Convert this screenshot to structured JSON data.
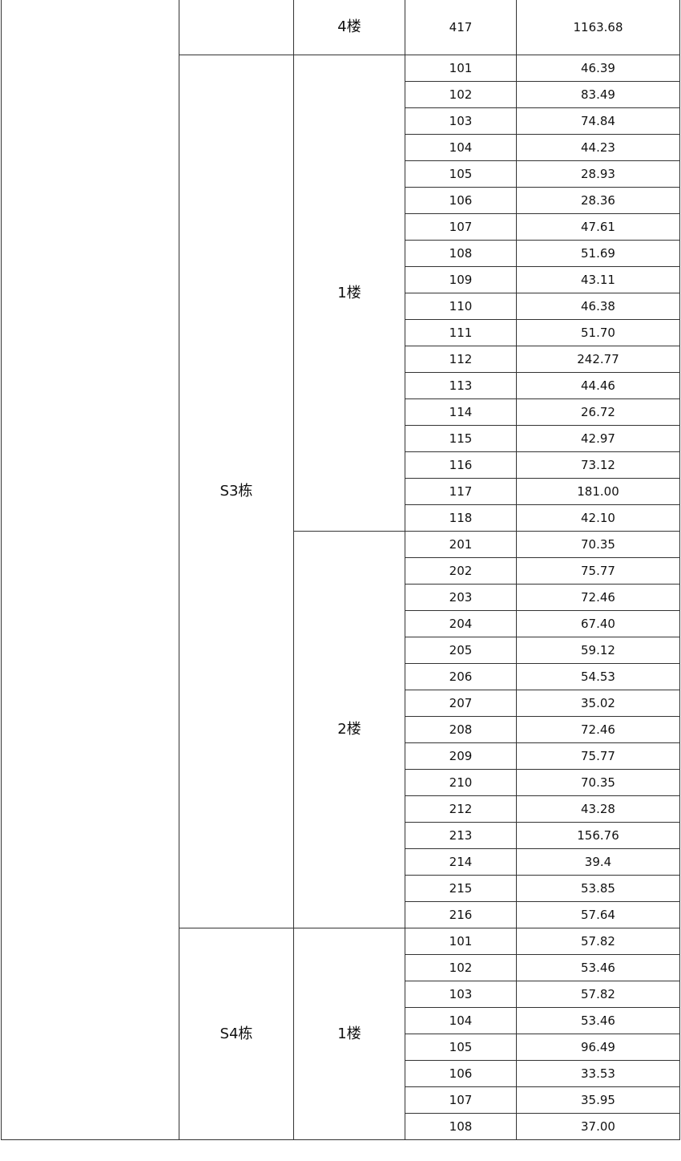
{
  "table": {
    "top_row": {
      "floor": "4楼",
      "room": "417",
      "area": "1163.68"
    },
    "buildings": [
      {
        "name": "S3栋",
        "floors": [
          {
            "name": "1楼",
            "rooms": [
              {
                "room": "101",
                "area": "46.39"
              },
              {
                "room": "102",
                "area": "83.49"
              },
              {
                "room": "103",
                "area": "74.84"
              },
              {
                "room": "104",
                "area": "44.23"
              },
              {
                "room": "105",
                "area": "28.93"
              },
              {
                "room": "106",
                "area": "28.36"
              },
              {
                "room": "107",
                "area": "47.61"
              },
              {
                "room": "108",
                "area": "51.69"
              },
              {
                "room": "109",
                "area": "43.11"
              },
              {
                "room": "110",
                "area": "46.38"
              },
              {
                "room": "111",
                "area": "51.70"
              },
              {
                "room": "112",
                "area": "242.77"
              },
              {
                "room": "113",
                "area": "44.46"
              },
              {
                "room": "114",
                "area": "26.72"
              },
              {
                "room": "115",
                "area": "42.97"
              },
              {
                "room": "116",
                "area": "73.12"
              },
              {
                "room": "117",
                "area": "181.00"
              },
              {
                "room": "118",
                "area": "42.10"
              }
            ]
          },
          {
            "name": "2楼",
            "rooms": [
              {
                "room": "201",
                "area": "70.35"
              },
              {
                "room": "202",
                "area": "75.77"
              },
              {
                "room": "203",
                "area": "72.46"
              },
              {
                "room": "204",
                "area": "67.40"
              },
              {
                "room": "205",
                "area": "59.12"
              },
              {
                "room": "206",
                "area": "54.53"
              },
              {
                "room": "207",
                "area": "35.02"
              },
              {
                "room": "208",
                "area": "72.46"
              },
              {
                "room": "209",
                "area": "75.77"
              },
              {
                "room": "210",
                "area": "70.35"
              },
              {
                "room": "212",
                "area": "43.28"
              },
              {
                "room": "213",
                "area": "156.76"
              },
              {
                "room": "214",
                "area": "39.4"
              },
              {
                "room": "215",
                "area": "53.85"
              },
              {
                "room": "216",
                "area": "57.64"
              }
            ]
          }
        ]
      },
      {
        "name": "S4栋",
        "floors": [
          {
            "name": "1楼",
            "rooms": [
              {
                "room": "101",
                "area": "57.82"
              },
              {
                "room": "102",
                "area": "53.46"
              },
              {
                "room": "103",
                "area": "57.82"
              },
              {
                "room": "104",
                "area": "53.46"
              },
              {
                "room": "105",
                "area": "96.49"
              },
              {
                "room": "106",
                "area": "33.53"
              },
              {
                "room": "107",
                "area": "35.95"
              },
              {
                "room": "108",
                "area": "37.00"
              }
            ]
          }
        ]
      }
    ]
  }
}
